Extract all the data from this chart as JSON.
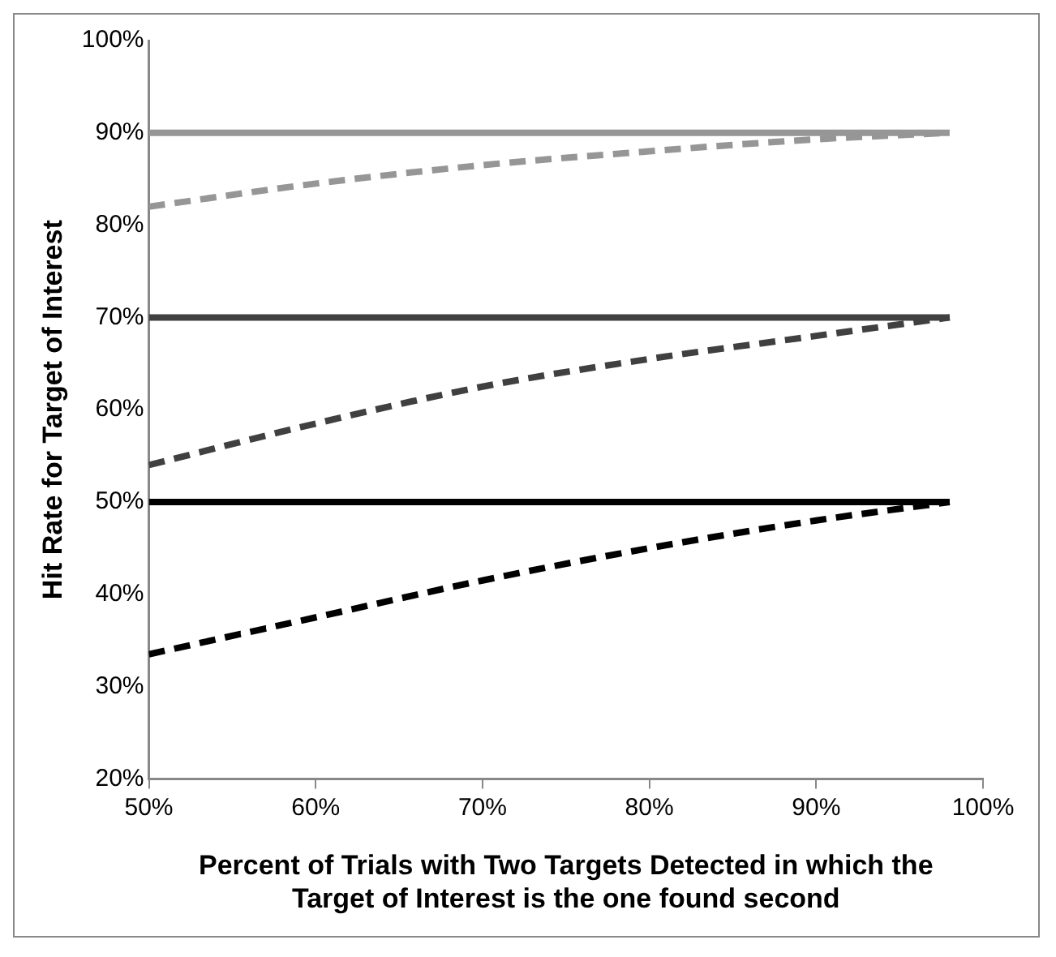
{
  "chart_data": {
    "type": "line",
    "xlabel": "Percent of Trials with Two Targets Detected in which the Target of Interest is the one found second",
    "ylabel": "Hit Rate for Target of Interest",
    "xlim": [
      50,
      100
    ],
    "xticks": [
      {
        "value": 50,
        "label": "50%"
      },
      {
        "value": 60,
        "label": "60%"
      },
      {
        "value": 70,
        "label": "70%"
      },
      {
        "value": 80,
        "label": "80%"
      },
      {
        "value": 90,
        "label": "90%"
      },
      {
        "value": 100,
        "label": "100%"
      }
    ],
    "ylim": [
      20,
      100
    ],
    "yticks": [
      {
        "value": 20,
        "label": "20%"
      },
      {
        "value": 30,
        "label": "30%"
      },
      {
        "value": 40,
        "label": "40%"
      },
      {
        "value": 50,
        "label": "50%"
      },
      {
        "value": 60,
        "label": "60%"
      },
      {
        "value": 70,
        "label": "70%"
      },
      {
        "value": 80,
        "label": "80%"
      },
      {
        "value": 90,
        "label": "90%"
      },
      {
        "value": 100,
        "label": "100%"
      }
    ],
    "grid": false,
    "legend": false,
    "marker": "none",
    "series": [
      {
        "color": "#969696",
        "line_style": "solid",
        "x": [
          50,
          98
        ],
        "values": [
          90,
          90
        ]
      },
      {
        "color": "#969696",
        "line_style": "dashed",
        "x": [
          50,
          60,
          70,
          80,
          90,
          98
        ],
        "values": [
          82,
          84.5,
          86.5,
          88,
          89.3,
          90
        ]
      },
      {
        "color": "#404040",
        "line_style": "solid",
        "x": [
          50,
          98
        ],
        "values": [
          70,
          70
        ]
      },
      {
        "color": "#404040",
        "line_style": "dashed",
        "x": [
          50,
          60,
          70,
          80,
          90,
          98
        ],
        "values": [
          54,
          58.5,
          62.5,
          65.5,
          68,
          70
        ]
      },
      {
        "color": "#000000",
        "line_style": "solid",
        "x": [
          50,
          98
        ],
        "values": [
          50,
          50
        ]
      },
      {
        "color": "#000000",
        "line_style": "dashed",
        "x": [
          50,
          60,
          70,
          80,
          90,
          98
        ],
        "values": [
          33.5,
          37.5,
          41.5,
          45,
          48,
          50
        ]
      }
    ]
  }
}
